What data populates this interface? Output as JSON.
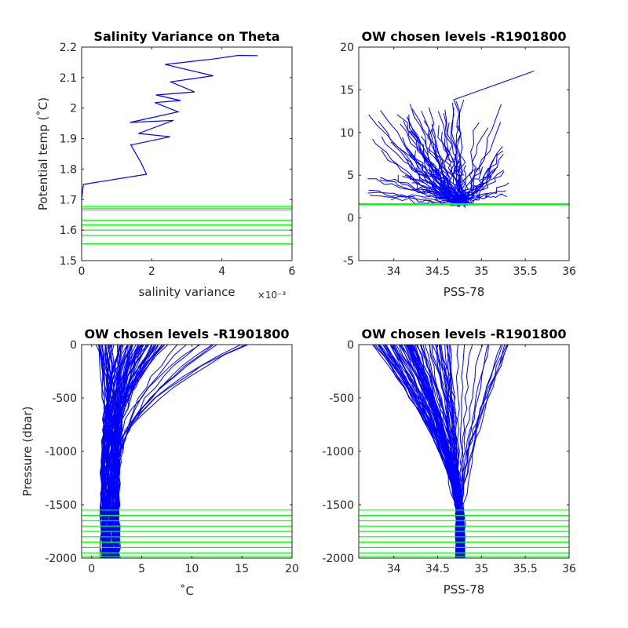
{
  "figure": {
    "background": "#ffffff"
  },
  "colors": {
    "profile": "#0000ff",
    "level": "#00ff00",
    "axis": "#262626"
  },
  "chart_data": [
    {
      "id": "ax1",
      "type": "line",
      "title": "Salinity Variance on Theta",
      "xlabel": "salinity variance",
      "ylabel": "Potential temp (˚C)",
      "xlim": [
        0,
        0.006
      ],
      "ylim": [
        1.5,
        2.2
      ],
      "xticks": [
        0,
        0.002,
        0.004,
        0.006
      ],
      "xtick_labels": [
        "0",
        "2",
        "4",
        "6"
      ],
      "x_exponent_label": "×10⁻³",
      "yticks": [
        1.5,
        1.6,
        1.7,
        1.8,
        1.9,
        2.0,
        2.1,
        2.2
      ],
      "ytick_labels": [
        "1.5",
        "1.6",
        "1.7",
        "1.8",
        "1.9",
        "2",
        "2.1",
        "2.2"
      ],
      "grid": false,
      "series": [
        {
          "color": "#0000ff",
          "x": [
            0.00502,
            0.00448,
            0.00374,
            0.00238,
            0.00375,
            0.00254,
            0.00322,
            0.00212,
            0.00282,
            0.00209,
            0.00275,
            0.00138,
            0.00262,
            0.00162,
            0.00252,
            0.00145,
            0.0014,
            0.0017,
            0.00185,
            5e-05,
            0.0,
            0.0,
            0.0
          ],
          "y": [
            2.172,
            2.173,
            2.161,
            2.143,
            2.106,
            2.086,
            2.053,
            2.043,
            2.025,
            2.018,
            1.988,
            1.953,
            1.96,
            1.917,
            1.906,
            1.88,
            1.88,
            1.82,
            1.783,
            1.75,
            1.7,
            1.6,
            1.56
          ]
        }
      ],
      "hlines": [
        1.555,
        1.583,
        1.6,
        1.617,
        1.633,
        1.666,
        1.672,
        1.678
      ]
    },
    {
      "id": "ax2",
      "type": "line",
      "title": "OW chosen levels -R1901800",
      "xlabel": "PSS-78",
      "ylabel": "",
      "xlim": [
        33.6,
        36
      ],
      "ylim": [
        -5,
        20
      ],
      "xticks": [
        34,
        34.5,
        35,
        35.5,
        36
      ],
      "xtick_labels": [
        "34",
        "34.5",
        "35",
        "35.5",
        "36"
      ],
      "yticks": [
        -5,
        0,
        5,
        10,
        15,
        20
      ],
      "ytick_labels": [
        "-5",
        "0",
        "5",
        "10",
        "15",
        "20"
      ],
      "grid": false,
      "hlines": [
        1.53,
        1.56,
        1.58,
        1.6,
        1.62,
        1.64,
        1.67
      ]
    },
    {
      "id": "ax3",
      "type": "line",
      "title": "OW chosen levels -R1901800",
      "xlabel": "˚C",
      "ylabel": "Pressure (dbar)",
      "xlim": [
        -1,
        20
      ],
      "ylim": [
        -2000,
        0
      ],
      "xticks": [
        0,
        5,
        10,
        15,
        20
      ],
      "xtick_labels": [
        "0",
        "5",
        "10",
        "15",
        "20"
      ],
      "yticks": [
        -2000,
        -1500,
        -1000,
        -500,
        0
      ],
      "ytick_labels": [
        "-2000",
        "-1500",
        "-1000",
        "-500",
        "0"
      ],
      "grid": false,
      "hlines": [
        -1550,
        -1600,
        -1650,
        -1700,
        -1750,
        -1800,
        -1850,
        -1900,
        -1950,
        -1985
      ]
    },
    {
      "id": "ax4",
      "type": "line",
      "title": "OW chosen levels -R1901800",
      "xlabel": "PSS-78",
      "ylabel": "",
      "xlim": [
        33.6,
        36
      ],
      "ylim": [
        -2000,
        0
      ],
      "xticks": [
        34,
        34.5,
        35,
        35.5,
        36
      ],
      "xtick_labels": [
        "34",
        "34.5",
        "35",
        "35.5",
        "36"
      ],
      "yticks": [
        -2000,
        -1500,
        -1000,
        -500,
        0
      ],
      "ytick_labels": [
        "-2000",
        "-1500",
        "-1000",
        "-500",
        "0"
      ],
      "grid": false,
      "hlines": [
        -1550,
        -1600,
        -1650,
        -1700,
        -1750,
        -1800,
        -1850,
        -1900,
        -1950,
        -1985
      ]
    }
  ]
}
